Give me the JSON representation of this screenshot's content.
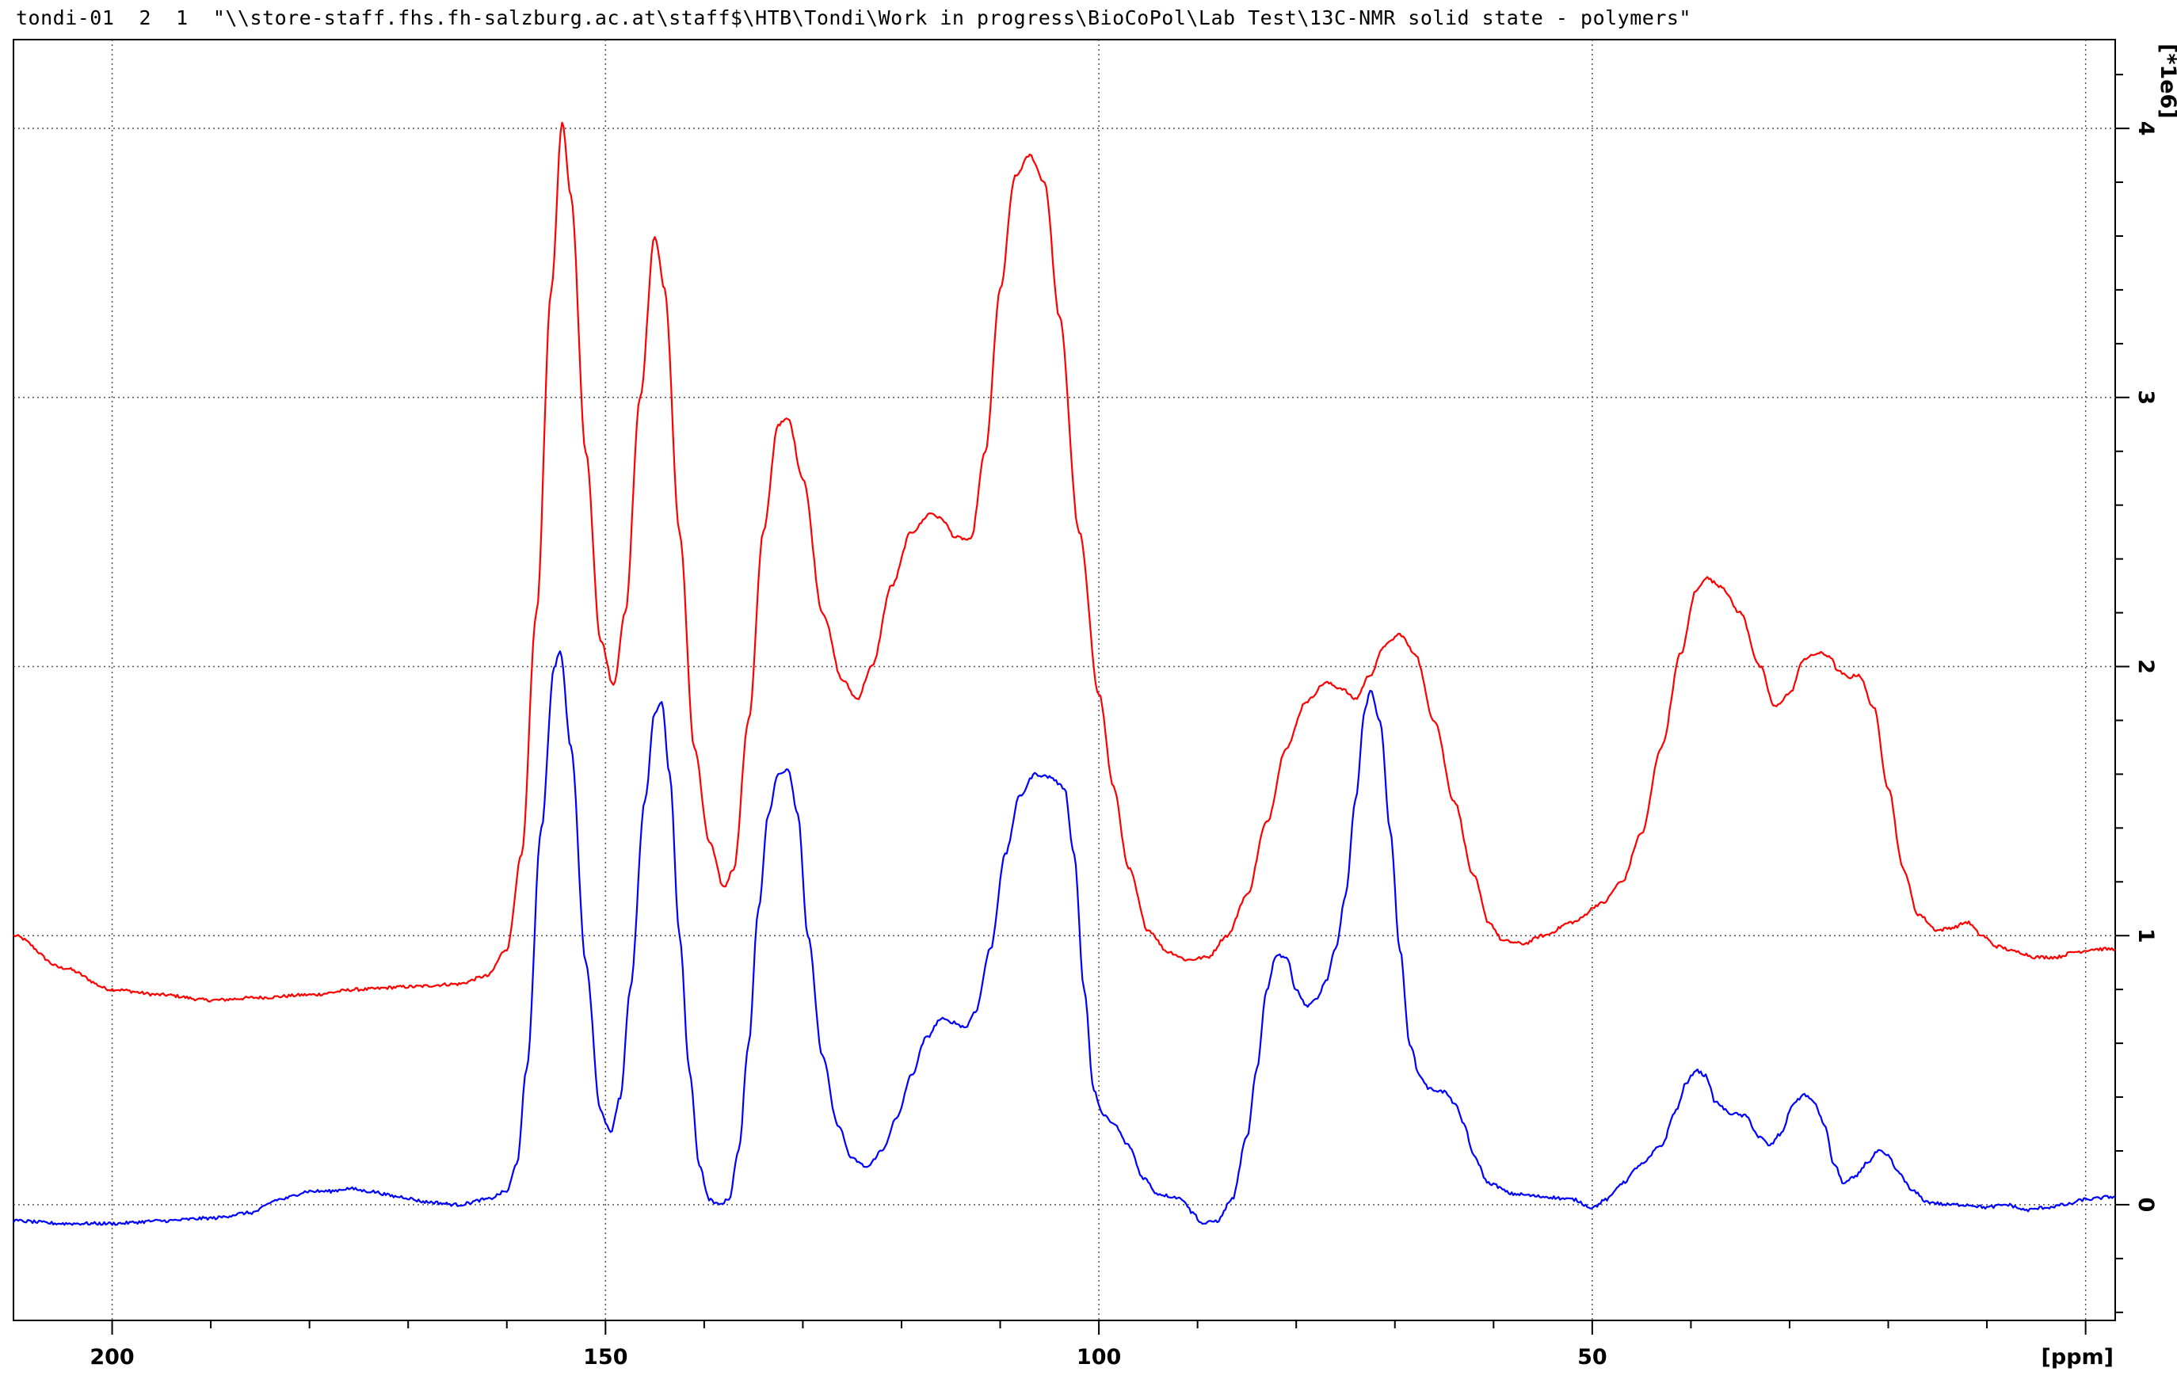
{
  "header": {
    "title": "tondi-01  2  1  \"\\\\store-staff.fhs.fh-salzburg.ac.at\\staff$\\HTB\\Tondi\\Work in progress\\BioCoPol\\Lab Test\\13C-NMR solid state - polymers\""
  },
  "chart_data": {
    "type": "line",
    "title": "",
    "xlabel": "[ppm]",
    "ylabel": "[*1e6]",
    "xlim": [
      210,
      -3
    ],
    "ylim": [
      -0.43,
      4.33
    ],
    "x_reversed": true,
    "grid": true,
    "grid_style": "dotted",
    "x_ticks": [
      200,
      150,
      100,
      50
    ],
    "x_tick_labels": [
      "200",
      "150",
      "100",
      "50"
    ],
    "y_ticks": [
      0,
      1,
      2,
      3,
      4
    ],
    "y_tick_labels": [
      "0",
      "1",
      "2",
      "3",
      "4"
    ],
    "series": [
      {
        "color": "#ff0000",
        "points": [
          [
            210,
            1.0
          ],
          [
            205,
            0.88
          ],
          [
            200,
            0.8
          ],
          [
            195,
            0.78
          ],
          [
            190,
            0.76
          ],
          [
            185,
            0.77
          ],
          [
            180,
            0.78
          ],
          [
            175,
            0.8
          ],
          [
            170,
            0.81
          ],
          [
            165,
            0.82
          ],
          [
            162,
            0.85
          ],
          [
            160,
            0.95
          ],
          [
            158.5,
            1.3
          ],
          [
            157,
            2.2
          ],
          [
            155.5,
            3.4
          ],
          [
            154.4,
            4.02
          ],
          [
            153.5,
            3.75
          ],
          [
            152,
            2.8
          ],
          [
            150.5,
            2.1
          ],
          [
            149.2,
            1.93
          ],
          [
            148,
            2.2
          ],
          [
            146.5,
            3.0
          ],
          [
            145,
            3.6
          ],
          [
            144,
            3.4
          ],
          [
            142.5,
            2.5
          ],
          [
            141,
            1.7
          ],
          [
            139.5,
            1.35
          ],
          [
            138,
            1.18
          ],
          [
            137,
            1.25
          ],
          [
            135.5,
            1.8
          ],
          [
            134,
            2.5
          ],
          [
            132.5,
            2.9
          ],
          [
            131.5,
            2.92
          ],
          [
            130,
            2.7
          ],
          [
            128,
            2.2
          ],
          [
            126,
            1.95
          ],
          [
            124.5,
            1.88
          ],
          [
            123,
            2.0
          ],
          [
            121,
            2.3
          ],
          [
            119,
            2.5
          ],
          [
            117,
            2.57
          ],
          [
            116,
            2.55
          ],
          [
            114.5,
            2.48
          ],
          [
            113,
            2.47
          ],
          [
            111.5,
            2.8
          ],
          [
            110,
            3.4
          ],
          [
            108.5,
            3.82
          ],
          [
            107,
            3.9
          ],
          [
            105.5,
            3.8
          ],
          [
            104,
            3.3
          ],
          [
            102,
            2.5
          ],
          [
            100,
            1.9
          ],
          [
            98.5,
            1.55
          ],
          [
            97,
            1.25
          ],
          [
            95,
            1.02
          ],
          [
            93,
            0.94
          ],
          [
            91,
            0.91
          ],
          [
            89,
            0.92
          ],
          [
            87,
            1.0
          ],
          [
            85,
            1.15
          ],
          [
            83,
            1.42
          ],
          [
            81,
            1.7
          ],
          [
            79,
            1.87
          ],
          [
            77,
            1.94
          ],
          [
            75.5,
            1.92
          ],
          [
            74,
            1.88
          ],
          [
            72.5,
            1.97
          ],
          [
            71,
            2.08
          ],
          [
            69.5,
            2.12
          ],
          [
            68,
            2.05
          ],
          [
            66,
            1.8
          ],
          [
            64,
            1.5
          ],
          [
            62,
            1.22
          ],
          [
            60.5,
            1.05
          ],
          [
            59,
            0.98
          ],
          [
            57,
            0.97
          ],
          [
            55,
            1.0
          ],
          [
            52,
            1.05
          ],
          [
            49,
            1.12
          ],
          [
            47,
            1.2
          ],
          [
            45,
            1.38
          ],
          [
            43,
            1.7
          ],
          [
            41,
            2.05
          ],
          [
            39.5,
            2.28
          ],
          [
            38.5,
            2.33
          ],
          [
            37,
            2.3
          ],
          [
            35,
            2.2
          ],
          [
            33,
            2.0
          ],
          [
            31.5,
            1.85
          ],
          [
            30,
            1.9
          ],
          [
            28.5,
            2.03
          ],
          [
            27,
            2.05
          ],
          [
            26,
            2.04
          ],
          [
            25,
            1.98
          ],
          [
            24,
            1.96
          ],
          [
            23,
            1.97
          ],
          [
            21.5,
            1.85
          ],
          [
            20,
            1.55
          ],
          [
            18.5,
            1.25
          ],
          [
            17,
            1.08
          ],
          [
            15,
            1.02
          ],
          [
            13.5,
            1.03
          ],
          [
            12,
            1.05
          ],
          [
            10.5,
            1.0
          ],
          [
            9,
            0.96
          ],
          [
            7,
            0.94
          ],
          [
            5,
            0.92
          ],
          [
            3,
            0.92
          ],
          [
            1,
            0.94
          ],
          [
            -1,
            0.95
          ],
          [
            -3,
            0.95
          ]
        ]
      },
      {
        "color": "#0000ff",
        "points": [
          [
            210,
            -0.06
          ],
          [
            205,
            -0.07
          ],
          [
            200,
            -0.07
          ],
          [
            195,
            -0.06
          ],
          [
            190,
            -0.05
          ],
          [
            186,
            -0.03
          ],
          [
            183,
            0.02
          ],
          [
            180,
            0.05
          ],
          [
            178,
            0.05
          ],
          [
            176,
            0.06
          ],
          [
            174,
            0.05
          ],
          [
            171,
            0.03
          ],
          [
            168,
            0.01
          ],
          [
            165,
            0.0
          ],
          [
            162,
            0.02
          ],
          [
            160,
            0.05
          ],
          [
            159,
            0.15
          ],
          [
            158,
            0.5
          ],
          [
            156.5,
            1.4
          ],
          [
            155.2,
            2.0
          ],
          [
            154.6,
            2.06
          ],
          [
            153.5,
            1.7
          ],
          [
            152,
            0.9
          ],
          [
            150.5,
            0.35
          ],
          [
            149.5,
            0.27
          ],
          [
            148.5,
            0.4
          ],
          [
            147.5,
            0.8
          ],
          [
            146,
            1.5
          ],
          [
            145,
            1.83
          ],
          [
            144.3,
            1.87
          ],
          [
            143.5,
            1.6
          ],
          [
            142.5,
            1.0
          ],
          [
            141.5,
            0.5
          ],
          [
            140.5,
            0.15
          ],
          [
            139.5,
            0.02
          ],
          [
            138.5,
            0.0
          ],
          [
            137.5,
            0.02
          ],
          [
            136.5,
            0.2
          ],
          [
            135.5,
            0.6
          ],
          [
            134.5,
            1.1
          ],
          [
            133.5,
            1.45
          ],
          [
            132.5,
            1.6
          ],
          [
            131.5,
            1.62
          ],
          [
            130.5,
            1.45
          ],
          [
            129.5,
            1.0
          ],
          [
            128,
            0.55
          ],
          [
            126.5,
            0.3
          ],
          [
            125,
            0.17
          ],
          [
            123.5,
            0.14
          ],
          [
            122,
            0.2
          ],
          [
            120.5,
            0.32
          ],
          [
            119,
            0.48
          ],
          [
            117.5,
            0.62
          ],
          [
            116,
            0.69
          ],
          [
            115,
            0.68
          ],
          [
            113.5,
            0.66
          ],
          [
            112.5,
            0.72
          ],
          [
            111,
            0.95
          ],
          [
            109.5,
            1.3
          ],
          [
            108,
            1.52
          ],
          [
            106.5,
            1.6
          ],
          [
            105,
            1.59
          ],
          [
            103.5,
            1.55
          ],
          [
            102.5,
            1.3
          ],
          [
            101.5,
            0.8
          ],
          [
            100.5,
            0.42
          ],
          [
            99.5,
            0.33
          ],
          [
            98.5,
            0.3
          ],
          [
            97,
            0.22
          ],
          [
            95.5,
            0.1
          ],
          [
            94,
            0.04
          ],
          [
            92.5,
            0.03
          ],
          [
            91.5,
            0.02
          ],
          [
            90.5,
            -0.03
          ],
          [
            89.5,
            -0.07
          ],
          [
            88,
            -0.06
          ],
          [
            86.5,
            0.02
          ],
          [
            85,
            0.25
          ],
          [
            84,
            0.5
          ],
          [
            83,
            0.8
          ],
          [
            82,
            0.93
          ],
          [
            81,
            0.92
          ],
          [
            80,
            0.8
          ],
          [
            79,
            0.74
          ],
          [
            78,
            0.76
          ],
          [
            77,
            0.83
          ],
          [
            76,
            0.95
          ],
          [
            75,
            1.15
          ],
          [
            74,
            1.5
          ],
          [
            73,
            1.85
          ],
          [
            72.5,
            1.91
          ],
          [
            71.5,
            1.8
          ],
          [
            70.5,
            1.4
          ],
          [
            69.5,
            0.95
          ],
          [
            68.5,
            0.6
          ],
          [
            67.5,
            0.48
          ],
          [
            66.5,
            0.43
          ],
          [
            65,
            0.42
          ],
          [
            64,
            0.38
          ],
          [
            63,
            0.3
          ],
          [
            62,
            0.18
          ],
          [
            60.5,
            0.08
          ],
          [
            58,
            0.04
          ],
          [
            55,
            0.03
          ],
          [
            52,
            0.02
          ],
          [
            50,
            -0.01
          ],
          [
            48.5,
            0.02
          ],
          [
            47,
            0.08
          ],
          [
            45,
            0.15
          ],
          [
            43,
            0.22
          ],
          [
            41.5,
            0.35
          ],
          [
            40.5,
            0.45
          ],
          [
            39.5,
            0.5
          ],
          [
            38.5,
            0.48
          ],
          [
            37.5,
            0.38
          ],
          [
            36,
            0.34
          ],
          [
            34.5,
            0.33
          ],
          [
            33,
            0.25
          ],
          [
            32,
            0.22
          ],
          [
            31,
            0.26
          ],
          [
            29.5,
            0.38
          ],
          [
            28.5,
            0.41
          ],
          [
            27.5,
            0.38
          ],
          [
            26.5,
            0.3
          ],
          [
            25.5,
            0.15
          ],
          [
            24.5,
            0.08
          ],
          [
            23.5,
            0.1
          ],
          [
            22,
            0.16
          ],
          [
            21,
            0.2
          ],
          [
            20,
            0.18
          ],
          [
            19,
            0.12
          ],
          [
            17.5,
            0.05
          ],
          [
            16,
            0.01
          ],
          [
            14,
            0.0
          ],
          [
            12,
            0.0
          ],
          [
            10,
            -0.01
          ],
          [
            8,
            0.0
          ],
          [
            6,
            -0.02
          ],
          [
            4,
            -0.01
          ],
          [
            2,
            0.0
          ],
          [
            0,
            0.02
          ],
          [
            -3,
            0.03
          ]
        ]
      }
    ]
  }
}
